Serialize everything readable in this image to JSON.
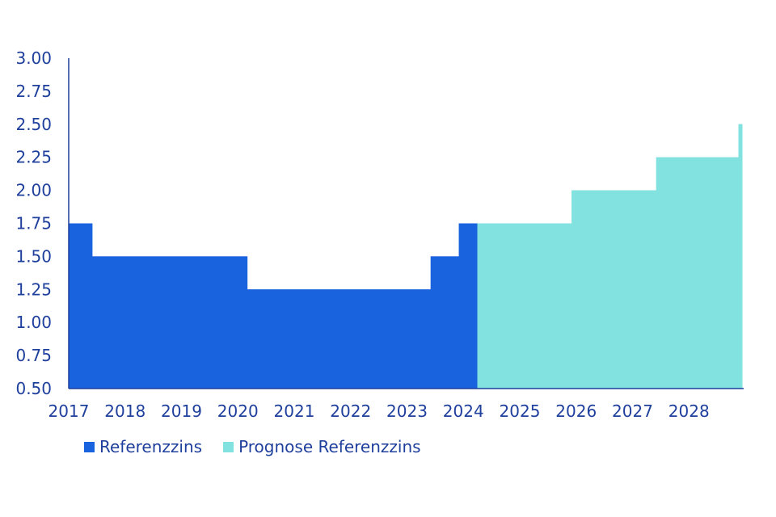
{
  "chart_data": {
    "type": "area",
    "step": true,
    "x_ticks": [
      "2017",
      "2018",
      "2019",
      "2020",
      "2021",
      "2022",
      "2023",
      "2024",
      "2025",
      "2026",
      "2027",
      "2028"
    ],
    "y_ticks": [
      "0.50",
      "0.75",
      "1.00",
      "1.25",
      "1.50",
      "1.75",
      "2.00",
      "2.25",
      "2.50",
      "2.75",
      "3.00"
    ],
    "ylim": [
      0.5,
      3.0
    ],
    "xlim": [
      2017.0,
      2028.95
    ],
    "grid": false,
    "legend_position": "bottom-left",
    "series": [
      {
        "name": "Referenzzins",
        "color": "#1a63de",
        "points": [
          {
            "x": 2017.0,
            "y": 1.75
          },
          {
            "x": 2017.42,
            "y": 1.5
          },
          {
            "x": 2020.17,
            "y": 1.25
          },
          {
            "x": 2023.42,
            "y": 1.5
          },
          {
            "x": 2023.92,
            "y": 1.75
          }
        ],
        "end_x": 2024.25
      },
      {
        "name": "Prognose Referenzzins",
        "color": "#82e2df",
        "points": [
          {
            "x": 2024.25,
            "y": 1.75
          },
          {
            "x": 2025.92,
            "y": 2.0
          },
          {
            "x": 2027.42,
            "y": 2.25
          },
          {
            "x": 2028.88,
            "y": 2.5
          }
        ],
        "end_x": 2028.95
      }
    ]
  },
  "legend": {
    "items": [
      {
        "label": "Referenzzins",
        "color": "#1a63de"
      },
      {
        "label": "Prognose Referenzzins",
        "color": "#82e2df"
      }
    ]
  },
  "axis_color": "#1f3f9c"
}
